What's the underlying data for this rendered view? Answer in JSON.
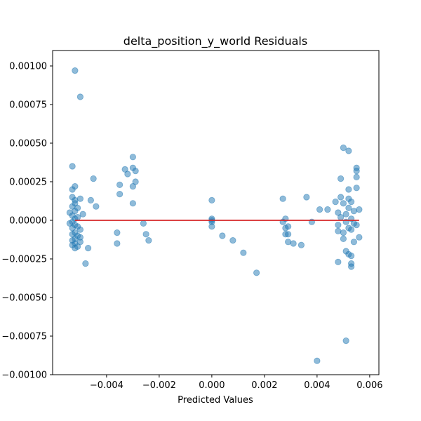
{
  "chart_data": {
    "type": "scatter",
    "title": "delta_position_y_world Residuals",
    "xlabel": "Predicted Values",
    "ylabel": "",
    "xlim": [
      -0.00605,
      0.00635
    ],
    "ylim": [
      -0.001,
      0.0011
    ],
    "xticks": [
      -0.004,
      -0.002,
      0.0,
      0.002,
      0.004,
      0.006
    ],
    "xtick_labels": [
      "−0.004",
      "−0.002",
      "0.000",
      "0.002",
      "0.004",
      "0.006"
    ],
    "yticks": [
      -0.001,
      -0.00075,
      -0.0005,
      -0.00025,
      0.0,
      0.00025,
      0.0005,
      0.00075,
      0.001
    ],
    "ytick_labels": [
      "−0.00100",
      "−0.00075",
      "−0.00050",
      "−0.00025",
      "0.00000",
      "0.00025",
      "0.00050",
      "0.00075",
      "0.00100"
    ],
    "grid": false,
    "point_color": "#1f77b4",
    "point_alpha": 0.5,
    "reference_line": {
      "y": 0.0,
      "x_range": [
        -0.0052,
        0.0056
      ],
      "color": "#d62728"
    },
    "points": [
      [
        -0.0052,
        0.00097
      ],
      [
        -0.005,
        0.0008
      ],
      [
        -0.0053,
        0.00035
      ],
      [
        -0.0053,
        0.0002
      ],
      [
        -0.0052,
        0.00022
      ],
      [
        -0.0053,
        0.00015
      ],
      [
        -0.0052,
        0.00013
      ],
      [
        -0.0052,
        0.00011
      ],
      [
        -0.005,
        0.00014
      ],
      [
        -0.0053,
        9e-05
      ],
      [
        -0.0051,
        8e-05
      ],
      [
        -0.0052,
        6e-05
      ],
      [
        -0.0054,
        5e-05
      ],
      [
        -0.0053,
        3e-05
      ],
      [
        -0.0051,
        2e-05
      ],
      [
        -0.0052,
        1e-05
      ],
      [
        -0.0053,
        -1e-05
      ],
      [
        -0.0054,
        -2e-05
      ],
      [
        -0.0052,
        -3e-05
      ],
      [
        -0.0051,
        -4e-05
      ],
      [
        -0.0053,
        -5e-05
      ],
      [
        -0.005,
        -6e-05
      ],
      [
        -0.0052,
        -8e-05
      ],
      [
        -0.0053,
        -9e-05
      ],
      [
        -0.0051,
        -0.0001
      ],
      [
        -0.0052,
        -0.00012
      ],
      [
        -0.0053,
        -0.00013
      ],
      [
        -0.005,
        -0.00014
      ],
      [
        -0.0052,
        -0.00015
      ],
      [
        -0.0053,
        -0.00016
      ],
      [
        -0.0051,
        -0.00017
      ],
      [
        -0.0052,
        -0.00018
      ],
      [
        -0.005,
        -0.00011
      ],
      [
        -0.0049,
        4e-05
      ],
      [
        -0.0048,
        -0.00028
      ],
      [
        -0.0047,
        -0.00018
      ],
      [
        -0.0046,
        0.00013
      ],
      [
        -0.0045,
        0.00027
      ],
      [
        -0.0044,
        9e-05
      ],
      [
        -0.0036,
        -8e-05
      ],
      [
        -0.0036,
        -0.00015
      ],
      [
        -0.0035,
        0.00017
      ],
      [
        -0.0035,
        0.00023
      ],
      [
        -0.0033,
        0.00033
      ],
      [
        -0.0032,
        0.0003
      ],
      [
        -0.003,
        0.00041
      ],
      [
        -0.003,
        0.00034
      ],
      [
        -0.003,
        0.00022
      ],
      [
        -0.003,
        0.00011
      ],
      [
        -0.0029,
        0.00032
      ],
      [
        -0.0029,
        0.00025
      ],
      [
        -0.0026,
        -2e-05
      ],
      [
        -0.0025,
        -9e-05
      ],
      [
        -0.0024,
        -0.00013
      ],
      [
        0.0,
        0.00013
      ],
      [
        0.0,
        1e-05
      ],
      [
        0.0,
        0.0
      ],
      [
        0.0,
        -1e-05
      ],
      [
        0.0,
        -4e-05
      ],
      [
        0.0004,
        -0.0001
      ],
      [
        0.0008,
        -0.00013
      ],
      [
        0.0012,
        -0.00021
      ],
      [
        0.0017,
        -0.00034
      ],
      [
        0.0027,
        0.00014
      ],
      [
        0.0027,
        -1e-05
      ],
      [
        0.0028,
        1e-05
      ],
      [
        0.0028,
        -5e-05
      ],
      [
        0.0028,
        -9e-05
      ],
      [
        0.0029,
        -4e-05
      ],
      [
        0.0029,
        -9e-05
      ],
      [
        0.0029,
        -0.00014
      ],
      [
        0.0031,
        -0.00015
      ],
      [
        0.0034,
        -0.00016
      ],
      [
        0.0036,
        0.00015
      ],
      [
        0.0038,
        -1e-05
      ],
      [
        0.004,
        -0.00091
      ],
      [
        0.0041,
        7e-05
      ],
      [
        0.0044,
        7e-05
      ],
      [
        0.0047,
        0.00012
      ],
      [
        0.0048,
        5e-05
      ],
      [
        0.0048,
        -3e-05
      ],
      [
        0.0048,
        -7e-05
      ],
      [
        0.0048,
        -0.00027
      ],
      [
        0.0049,
        0.00027
      ],
      [
        0.0049,
        0.00015
      ],
      [
        0.0049,
        2e-05
      ],
      [
        0.005,
        0.00047
      ],
      [
        0.005,
        0.00011
      ],
      [
        0.005,
        -8e-05
      ],
      [
        0.005,
        -0.00012
      ],
      [
        0.0051,
        4e-05
      ],
      [
        0.0051,
        -1e-05
      ],
      [
        0.0051,
        -0.0002
      ],
      [
        0.0051,
        -0.00078
      ],
      [
        0.0052,
        0.00045
      ],
      [
        0.0052,
        0.0002
      ],
      [
        0.0052,
        0.00014
      ],
      [
        0.0052,
        8e-05
      ],
      [
        0.0052,
        -5e-05
      ],
      [
        0.0052,
        -0.00022
      ],
      [
        0.0053,
        0.00012
      ],
      [
        0.0053,
        1e-05
      ],
      [
        0.0053,
        -6e-05
      ],
      [
        0.0053,
        -0.00023
      ],
      [
        0.0053,
        -0.00028
      ],
      [
        0.0053,
        -0.0003
      ],
      [
        0.0054,
        6e-05
      ],
      [
        0.0054,
        -2e-05
      ],
      [
        0.0054,
        -0.00014
      ],
      [
        0.0055,
        0.00034
      ],
      [
        0.0055,
        0.00032
      ],
      [
        0.0055,
        0.00028
      ],
      [
        0.0055,
        0.00021
      ],
      [
        0.0055,
        -3e-05
      ],
      [
        0.0056,
        -0.00011
      ],
      [
        0.0056,
        7e-05
      ]
    ]
  }
}
